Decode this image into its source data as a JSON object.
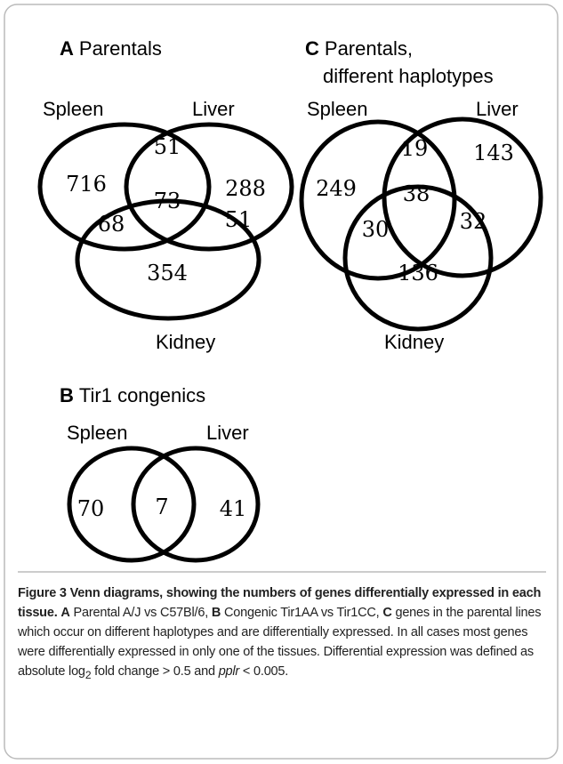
{
  "panels": [
    {
      "letter": "A",
      "title": [
        "Parentals"
      ],
      "sets": [
        "Spleen",
        "Liver",
        "Kidney"
      ],
      "regions": [
        716,
        51,
        288,
        73,
        68,
        51,
        354
      ]
    },
    {
      "letter": "C",
      "title": [
        "Parentals,",
        "different haplotypes"
      ],
      "sets": [
        "Spleen",
        "Liver",
        "Kidney"
      ],
      "regions": [
        249,
        19,
        143,
        38,
        30,
        32,
        136
      ]
    },
    {
      "letter": "B",
      "title": [
        "Tir1 congenics"
      ],
      "sets": [
        "Spleen",
        "Liver"
      ],
      "regions": [
        70,
        7,
        41
      ]
    }
  ],
  "caption": [
    {
      "text": "Figure 3 Venn diagrams, showing the numbers of genes differentially expressed in each tissue.",
      "style": "bold"
    },
    {
      "text": " ",
      "style": "normal"
    },
    {
      "text": "A",
      "style": "bold"
    },
    {
      "text": " Parental A/J vs C57Bl/6, ",
      "style": "normal"
    },
    {
      "text": "B",
      "style": "bold"
    },
    {
      "text": " Congenic Tir1AA vs Tir1CC, ",
      "style": "normal"
    },
    {
      "text": "C",
      "style": "bold"
    },
    {
      "text": " genes in the parental lines which occur on different haplotypes and are differentially expressed. In all cases most genes were differentially expressed in only one of the tissues. Differential expression was defined as absolute log",
      "style": "normal"
    },
    {
      "text": "2",
      "style": "sub"
    },
    {
      "text": " fold change > 0.5 and ",
      "style": "normal"
    },
    {
      "text": "pplr",
      "style": "italic"
    },
    {
      "text": " < 0.005.",
      "style": "normal"
    }
  ]
}
